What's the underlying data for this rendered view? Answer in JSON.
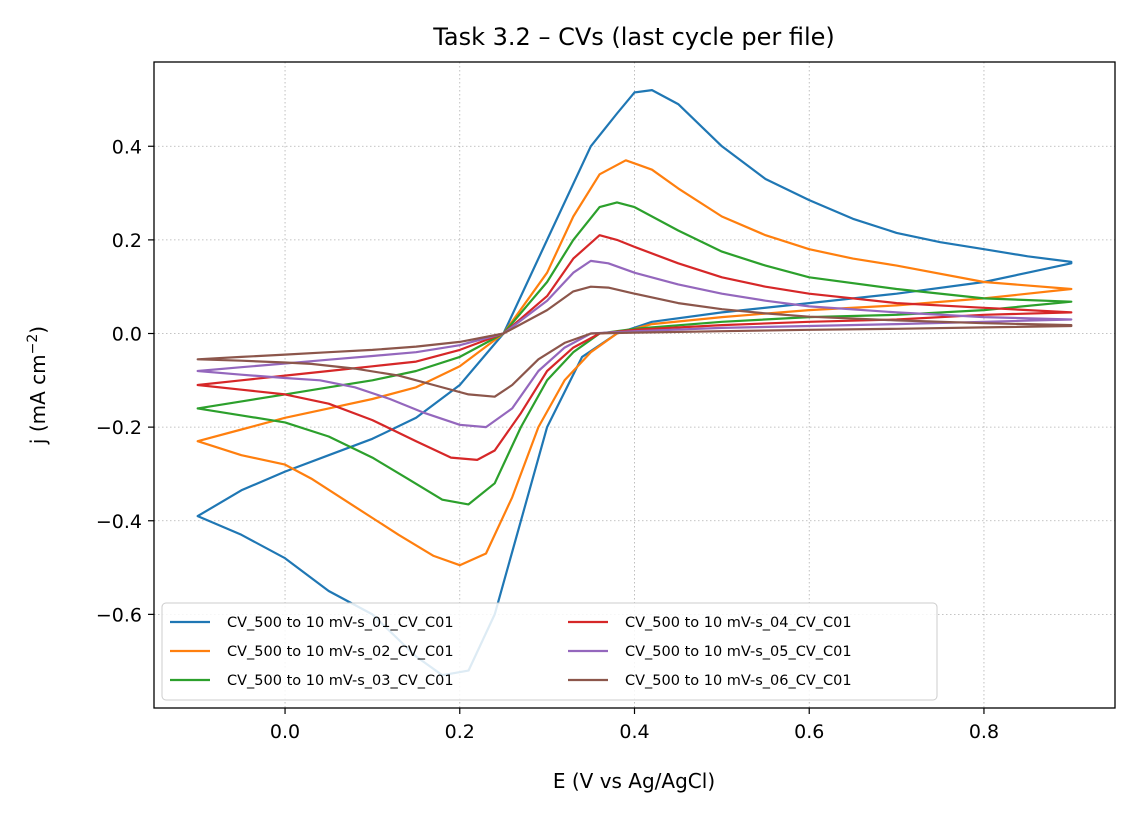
{
  "chart_data": {
    "type": "line",
    "title": "Task 3.2 – CVs (last cycle per file)",
    "xlabel": "E (V vs Ag/AgCl)",
    "ylabel_main": "j (mA cm",
    "ylabel_sup": "−2",
    "ylabel_close": ")",
    "xlim": [
      -0.15,
      0.95
    ],
    "ylim": [
      -0.8,
      0.58
    ],
    "xticks": [
      0.0,
      0.2,
      0.4,
      0.6,
      0.8
    ],
    "xtick_labels": [
      "0.0",
      "0.2",
      "0.4",
      "0.6",
      "0.8"
    ],
    "yticks": [
      -0.6,
      -0.4,
      -0.2,
      0.0,
      0.2,
      0.4
    ],
    "ytick_labels": [
      "−0.6",
      "−0.4",
      "−0.2",
      "0.0",
      "0.2",
      "0.4"
    ],
    "grid": true,
    "legend_position": "lower-left",
    "series": [
      {
        "name": "CV_500 to 10 mV-s_01_CV_C01",
        "color": "#1f77b4",
        "points": [
          [
            -0.1,
            -0.39
          ],
          [
            -0.05,
            -0.335
          ],
          [
            0.0,
            -0.295
          ],
          [
            0.05,
            -0.26
          ],
          [
            0.1,
            -0.225
          ],
          [
            0.15,
            -0.18
          ],
          [
            0.2,
            -0.11
          ],
          [
            0.25,
            0.0
          ],
          [
            0.3,
            0.2
          ],
          [
            0.35,
            0.4
          ],
          [
            0.38,
            0.47
          ],
          [
            0.4,
            0.515
          ],
          [
            0.42,
            0.52
          ],
          [
            0.45,
            0.49
          ],
          [
            0.5,
            0.4
          ],
          [
            0.55,
            0.33
          ],
          [
            0.6,
            0.285
          ],
          [
            0.65,
            0.245
          ],
          [
            0.7,
            0.215
          ],
          [
            0.75,
            0.195
          ],
          [
            0.8,
            0.18
          ],
          [
            0.85,
            0.165
          ],
          [
            0.9,
            0.153
          ],
          [
            0.9,
            0.15
          ],
          [
            0.85,
            0.13
          ],
          [
            0.8,
            0.11
          ],
          [
            0.7,
            0.085
          ],
          [
            0.6,
            0.065
          ],
          [
            0.5,
            0.045
          ],
          [
            0.42,
            0.025
          ],
          [
            0.38,
            0.0
          ],
          [
            0.34,
            -0.05
          ],
          [
            0.3,
            -0.2
          ],
          [
            0.27,
            -0.4
          ],
          [
            0.24,
            -0.6
          ],
          [
            0.21,
            -0.72
          ],
          [
            0.18,
            -0.73
          ],
          [
            0.15,
            -0.69
          ],
          [
            0.1,
            -0.6
          ],
          [
            0.05,
            -0.55
          ],
          [
            0.0,
            -0.48
          ],
          [
            -0.05,
            -0.43
          ],
          [
            -0.1,
            -0.39
          ]
        ]
      },
      {
        "name": "CV_500 to 10 mV-s_02_CV_C01",
        "color": "#ff7f0e",
        "points": [
          [
            -0.1,
            -0.23
          ],
          [
            -0.05,
            -0.205
          ],
          [
            0.0,
            -0.18
          ],
          [
            0.05,
            -0.16
          ],
          [
            0.1,
            -0.14
          ],
          [
            0.15,
            -0.115
          ],
          [
            0.2,
            -0.07
          ],
          [
            0.25,
            0.0
          ],
          [
            0.3,
            0.13
          ],
          [
            0.33,
            0.25
          ],
          [
            0.36,
            0.34
          ],
          [
            0.39,
            0.37
          ],
          [
            0.42,
            0.35
          ],
          [
            0.45,
            0.31
          ],
          [
            0.5,
            0.25
          ],
          [
            0.55,
            0.21
          ],
          [
            0.6,
            0.18
          ],
          [
            0.65,
            0.16
          ],
          [
            0.7,
            0.145
          ],
          [
            0.8,
            0.11
          ],
          [
            0.9,
            0.095
          ],
          [
            0.9,
            0.095
          ],
          [
            0.8,
            0.075
          ],
          [
            0.7,
            0.06
          ],
          [
            0.6,
            0.05
          ],
          [
            0.5,
            0.035
          ],
          [
            0.42,
            0.02
          ],
          [
            0.38,
            0.0
          ],
          [
            0.35,
            -0.04
          ],
          [
            0.32,
            -0.1
          ],
          [
            0.29,
            -0.2
          ],
          [
            0.26,
            -0.35
          ],
          [
            0.23,
            -0.47
          ],
          [
            0.2,
            -0.495
          ],
          [
            0.17,
            -0.475
          ],
          [
            0.13,
            -0.43
          ],
          [
            0.08,
            -0.37
          ],
          [
            0.03,
            -0.31
          ],
          [
            0.0,
            -0.28
          ],
          [
            -0.05,
            -0.26
          ],
          [
            -0.1,
            -0.23
          ]
        ]
      },
      {
        "name": "CV_500 to 10 mV-s_03_CV_C01",
        "color": "#2ca02c",
        "points": [
          [
            -0.1,
            -0.16
          ],
          [
            -0.05,
            -0.145
          ],
          [
            0.0,
            -0.13
          ],
          [
            0.05,
            -0.115
          ],
          [
            0.1,
            -0.1
          ],
          [
            0.15,
            -0.08
          ],
          [
            0.2,
            -0.05
          ],
          [
            0.25,
            0.0
          ],
          [
            0.3,
            0.11
          ],
          [
            0.33,
            0.2
          ],
          [
            0.36,
            0.27
          ],
          [
            0.38,
            0.28
          ],
          [
            0.4,
            0.27
          ],
          [
            0.45,
            0.22
          ],
          [
            0.5,
            0.175
          ],
          [
            0.55,
            0.145
          ],
          [
            0.6,
            0.12
          ],
          [
            0.7,
            0.095
          ],
          [
            0.8,
            0.075
          ],
          [
            0.9,
            0.068
          ],
          [
            0.9,
            0.068
          ],
          [
            0.8,
            0.05
          ],
          [
            0.7,
            0.04
          ],
          [
            0.6,
            0.035
          ],
          [
            0.5,
            0.025
          ],
          [
            0.4,
            0.01
          ],
          [
            0.36,
            0.0
          ],
          [
            0.33,
            -0.04
          ],
          [
            0.3,
            -0.1
          ],
          [
            0.27,
            -0.2
          ],
          [
            0.24,
            -0.32
          ],
          [
            0.21,
            -0.365
          ],
          [
            0.18,
            -0.355
          ],
          [
            0.14,
            -0.31
          ],
          [
            0.1,
            -0.265
          ],
          [
            0.05,
            -0.22
          ],
          [
            0.0,
            -0.19
          ],
          [
            -0.05,
            -0.175
          ],
          [
            -0.1,
            -0.16
          ]
        ]
      },
      {
        "name": "CV_500 to 10 mV-s_04_CV_C01",
        "color": "#d62728",
        "points": [
          [
            -0.1,
            -0.11
          ],
          [
            -0.05,
            -0.1
          ],
          [
            0.0,
            -0.09
          ],
          [
            0.05,
            -0.08
          ],
          [
            0.1,
            -0.07
          ],
          [
            0.15,
            -0.06
          ],
          [
            0.2,
            -0.035
          ],
          [
            0.25,
            0.0
          ],
          [
            0.3,
            0.08
          ],
          [
            0.33,
            0.16
          ],
          [
            0.36,
            0.21
          ],
          [
            0.38,
            0.2
          ],
          [
            0.4,
            0.185
          ],
          [
            0.45,
            0.15
          ],
          [
            0.5,
            0.12
          ],
          [
            0.55,
            0.1
          ],
          [
            0.6,
            0.085
          ],
          [
            0.7,
            0.065
          ],
          [
            0.8,
            0.055
          ],
          [
            0.9,
            0.045
          ],
          [
            0.9,
            0.045
          ],
          [
            0.8,
            0.04
          ],
          [
            0.7,
            0.03
          ],
          [
            0.6,
            0.025
          ],
          [
            0.5,
            0.018
          ],
          [
            0.4,
            0.008
          ],
          [
            0.36,
            0.0
          ],
          [
            0.33,
            -0.03
          ],
          [
            0.3,
            -0.08
          ],
          [
            0.27,
            -0.17
          ],
          [
            0.24,
            -0.25
          ],
          [
            0.22,
            -0.27
          ],
          [
            0.19,
            -0.265
          ],
          [
            0.15,
            -0.23
          ],
          [
            0.1,
            -0.185
          ],
          [
            0.05,
            -0.15
          ],
          [
            0.0,
            -0.13
          ],
          [
            -0.05,
            -0.12
          ],
          [
            -0.1,
            -0.11
          ]
        ]
      },
      {
        "name": "CV_500 to 10 mV-s_05_CV_C01",
        "color": "#9467bd",
        "points": [
          [
            -0.1,
            -0.08
          ],
          [
            -0.05,
            -0.072
          ],
          [
            0.0,
            -0.064
          ],
          [
            0.05,
            -0.056
          ],
          [
            0.1,
            -0.048
          ],
          [
            0.15,
            -0.04
          ],
          [
            0.2,
            -0.025
          ],
          [
            0.25,
            0.0
          ],
          [
            0.3,
            0.07
          ],
          [
            0.33,
            0.13
          ],
          [
            0.35,
            0.155
          ],
          [
            0.37,
            0.15
          ],
          [
            0.4,
            0.13
          ],
          [
            0.45,
            0.105
          ],
          [
            0.5,
            0.085
          ],
          [
            0.55,
            0.07
          ],
          [
            0.6,
            0.058
          ],
          [
            0.7,
            0.045
          ],
          [
            0.8,
            0.035
          ],
          [
            0.9,
            0.03
          ],
          [
            0.9,
            0.03
          ],
          [
            0.8,
            0.025
          ],
          [
            0.7,
            0.02
          ],
          [
            0.6,
            0.016
          ],
          [
            0.5,
            0.012
          ],
          [
            0.4,
            0.005
          ],
          [
            0.35,
            0.0
          ],
          [
            0.32,
            -0.03
          ],
          [
            0.29,
            -0.08
          ],
          [
            0.26,
            -0.16
          ],
          [
            0.23,
            -0.2
          ],
          [
            0.2,
            -0.195
          ],
          [
            0.16,
            -0.17
          ],
          [
            0.12,
            -0.14
          ],
          [
            0.08,
            -0.115
          ],
          [
            0.04,
            -0.1
          ],
          [
            0.0,
            -0.095
          ],
          [
            -0.05,
            -0.088
          ],
          [
            -0.1,
            -0.08
          ]
        ]
      },
      {
        "name": "CV_500 to 10 mV-s_06_CV_C01",
        "color": "#8c564b",
        "points": [
          [
            -0.1,
            -0.055
          ],
          [
            -0.05,
            -0.05
          ],
          [
            0.0,
            -0.045
          ],
          [
            0.05,
            -0.04
          ],
          [
            0.1,
            -0.035
          ],
          [
            0.15,
            -0.028
          ],
          [
            0.2,
            -0.018
          ],
          [
            0.25,
            0.0
          ],
          [
            0.3,
            0.05
          ],
          [
            0.33,
            0.09
          ],
          [
            0.35,
            0.1
          ],
          [
            0.37,
            0.098
          ],
          [
            0.4,
            0.085
          ],
          [
            0.45,
            0.065
          ],
          [
            0.5,
            0.052
          ],
          [
            0.55,
            0.043
          ],
          [
            0.6,
            0.036
          ],
          [
            0.7,
            0.028
          ],
          [
            0.8,
            0.022
          ],
          [
            0.9,
            0.018
          ],
          [
            0.9,
            0.016
          ],
          [
            0.8,
            0.013
          ],
          [
            0.7,
            0.01
          ],
          [
            0.6,
            0.008
          ],
          [
            0.5,
            0.005
          ],
          [
            0.4,
            0.002
          ],
          [
            0.35,
            0.0
          ],
          [
            0.32,
            -0.02
          ],
          [
            0.29,
            -0.055
          ],
          [
            0.26,
            -0.11
          ],
          [
            0.24,
            -0.135
          ],
          [
            0.21,
            -0.13
          ],
          [
            0.17,
            -0.11
          ],
          [
            0.13,
            -0.09
          ],
          [
            0.08,
            -0.075
          ],
          [
            0.03,
            -0.065
          ],
          [
            0.0,
            -0.062
          ],
          [
            -0.05,
            -0.058
          ],
          [
            -0.1,
            -0.055
          ]
        ]
      }
    ]
  }
}
